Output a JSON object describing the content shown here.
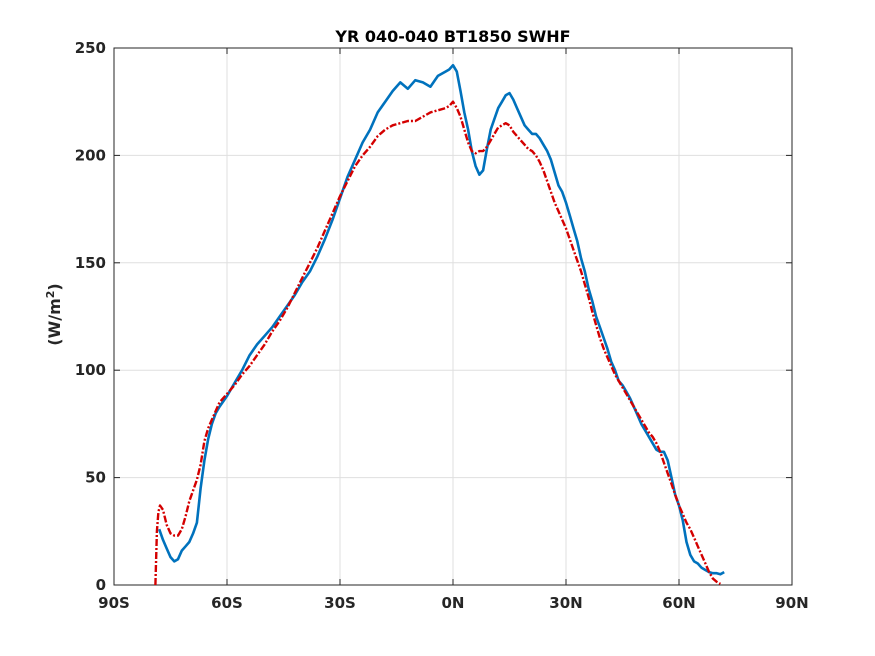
{
  "chart_data": {
    "type": "line",
    "title": "YR 040-040 BT1850    SWHF",
    "ylabel": "(W/m",
    "ylabel_sup": "2",
    "ylabel_close": ")",
    "xlim": [
      -90,
      90
    ],
    "ylim": [
      0,
      250
    ],
    "grid": true,
    "x_ticks": [
      -90,
      -60,
      -30,
      0,
      30,
      60,
      90
    ],
    "x_tick_labels": [
      "90S",
      "60S",
      "30S",
      "0N",
      "30N",
      "60N",
      "90N"
    ],
    "y_ticks": [
      0,
      50,
      100,
      150,
      200,
      250
    ],
    "y_tick_labels": [
      "0",
      "50",
      "100",
      "150",
      "200",
      "250"
    ],
    "series": [
      {
        "color": "#0072BD",
        "style": "solid",
        "points": [
          [
            -78,
            26
          ],
          [
            -77,
            21
          ],
          [
            -76,
            17
          ],
          [
            -75,
            13
          ],
          [
            -74,
            11
          ],
          [
            -73,
            12
          ],
          [
            -72,
            16
          ],
          [
            -71,
            18
          ],
          [
            -70,
            20
          ],
          [
            -69,
            24
          ],
          [
            -68,
            29
          ],
          [
            -67,
            45
          ],
          [
            -66,
            58
          ],
          [
            -65,
            68
          ],
          [
            -64,
            75
          ],
          [
            -63,
            80
          ],
          [
            -62,
            83
          ],
          [
            -60,
            88
          ],
          [
            -58,
            94
          ],
          [
            -56,
            100
          ],
          [
            -54,
            107
          ],
          [
            -52,
            112
          ],
          [
            -50,
            116
          ],
          [
            -48,
            120
          ],
          [
            -46,
            125
          ],
          [
            -44,
            130
          ],
          [
            -42,
            135
          ],
          [
            -40,
            141
          ],
          [
            -38,
            146
          ],
          [
            -36,
            153
          ],
          [
            -34,
            161
          ],
          [
            -32,
            170
          ],
          [
            -30,
            180
          ],
          [
            -28,
            190
          ],
          [
            -26,
            198
          ],
          [
            -24,
            206
          ],
          [
            -22,
            212
          ],
          [
            -20,
            220
          ],
          [
            -18,
            225
          ],
          [
            -16,
            230
          ],
          [
            -14,
            234
          ],
          [
            -12,
            231
          ],
          [
            -10,
            235
          ],
          [
            -8,
            234
          ],
          [
            -6,
            232
          ],
          [
            -4,
            237
          ],
          [
            -2,
            239
          ],
          [
            -1,
            240
          ],
          [
            0,
            242
          ],
          [
            1,
            239
          ],
          [
            2,
            230
          ],
          [
            3,
            220
          ],
          [
            4,
            212
          ],
          [
            5,
            202
          ],
          [
            6,
            195
          ],
          [
            7,
            191
          ],
          [
            8,
            193
          ],
          [
            9,
            203
          ],
          [
            10,
            212
          ],
          [
            11,
            217
          ],
          [
            12,
            222
          ],
          [
            13,
            225
          ],
          [
            14,
            228
          ],
          [
            15,
            229
          ],
          [
            16,
            226
          ],
          [
            17,
            222
          ],
          [
            18,
            218
          ],
          [
            19,
            214
          ],
          [
            20,
            212
          ],
          [
            21,
            210
          ],
          [
            22,
            210
          ],
          [
            23,
            208
          ],
          [
            24,
            205
          ],
          [
            25,
            202
          ],
          [
            26,
            198
          ],
          [
            27,
            192
          ],
          [
            28,
            186
          ],
          [
            29,
            183
          ],
          [
            30,
            178
          ],
          [
            31,
            172
          ],
          [
            32,
            166
          ],
          [
            33,
            160
          ],
          [
            34,
            152
          ],
          [
            35,
            146
          ],
          [
            36,
            138
          ],
          [
            37,
            132
          ],
          [
            38,
            125
          ],
          [
            39,
            120
          ],
          [
            40,
            115
          ],
          [
            41,
            110
          ],
          [
            42,
            104
          ],
          [
            43,
            100
          ],
          [
            44,
            95
          ],
          [
            45,
            93
          ],
          [
            46,
            90
          ],
          [
            47,
            87
          ],
          [
            48,
            83
          ],
          [
            49,
            79
          ],
          [
            50,
            75
          ],
          [
            51,
            72
          ],
          [
            52,
            69
          ],
          [
            53,
            66
          ],
          [
            54,
            63
          ],
          [
            55,
            62
          ],
          [
            56,
            62
          ],
          [
            57,
            58
          ],
          [
            58,
            50
          ],
          [
            59,
            42
          ],
          [
            60,
            37
          ],
          [
            61,
            30
          ],
          [
            62,
            20
          ],
          [
            63,
            14
          ],
          [
            64,
            11
          ],
          [
            65,
            10
          ],
          [
            66,
            8
          ],
          [
            67,
            7
          ],
          [
            68,
            6
          ],
          [
            69,
            5.5
          ],
          [
            70,
            5.5
          ],
          [
            71,
            5
          ],
          [
            72,
            6
          ]
        ]
      },
      {
        "color": "#D40000",
        "style": "dash-dot",
        "points": [
          [
            -79,
            0
          ],
          [
            -78.6,
            25
          ],
          [
            -78.2,
            34
          ],
          [
            -77.8,
            37
          ],
          [
            -77,
            35
          ],
          [
            -76,
            28
          ],
          [
            -75,
            24
          ],
          [
            -74,
            23
          ],
          [
            -73,
            23
          ],
          [
            -72,
            26
          ],
          [
            -71,
            32
          ],
          [
            -70,
            39
          ],
          [
            -69,
            44
          ],
          [
            -68,
            49
          ],
          [
            -67,
            56
          ],
          [
            -66,
            67
          ],
          [
            -65,
            73
          ],
          [
            -64,
            77
          ],
          [
            -63,
            81
          ],
          [
            -62,
            85
          ],
          [
            -60,
            89
          ],
          [
            -58,
            93
          ],
          [
            -56,
            98
          ],
          [
            -54,
            102
          ],
          [
            -52,
            107
          ],
          [
            -50,
            112
          ],
          [
            -48,
            118
          ],
          [
            -46,
            123
          ],
          [
            -44,
            129
          ],
          [
            -42,
            136
          ],
          [
            -40,
            143
          ],
          [
            -38,
            150
          ],
          [
            -36,
            157
          ],
          [
            -34,
            165
          ],
          [
            -32,
            173
          ],
          [
            -30,
            181
          ],
          [
            -28,
            188
          ],
          [
            -26,
            195
          ],
          [
            -24,
            200
          ],
          [
            -22,
            204
          ],
          [
            -20,
            209
          ],
          [
            -18,
            212
          ],
          [
            -16,
            214
          ],
          [
            -14,
            215
          ],
          [
            -12,
            216
          ],
          [
            -10,
            216
          ],
          [
            -8,
            218
          ],
          [
            -6,
            220
          ],
          [
            -4,
            221
          ],
          [
            -2,
            222
          ],
          [
            -1,
            223
          ],
          [
            0,
            225
          ],
          [
            1,
            222
          ],
          [
            2,
            218
          ],
          [
            3,
            212
          ],
          [
            4,
            206
          ],
          [
            5,
            202
          ],
          [
            6,
            201
          ],
          [
            7,
            202
          ],
          [
            8,
            202
          ],
          [
            9,
            204
          ],
          [
            10,
            207
          ],
          [
            11,
            210
          ],
          [
            12,
            213
          ],
          [
            13,
            214
          ],
          [
            14,
            215
          ],
          [
            15,
            214
          ],
          [
            16,
            211
          ],
          [
            17,
            209
          ],
          [
            18,
            207
          ],
          [
            19,
            205
          ],
          [
            20,
            203
          ],
          [
            21,
            202
          ],
          [
            22,
            200
          ],
          [
            23,
            197
          ],
          [
            24,
            193
          ],
          [
            25,
            188
          ],
          [
            26,
            183
          ],
          [
            27,
            178
          ],
          [
            28,
            174
          ],
          [
            29,
            170
          ],
          [
            30,
            166
          ],
          [
            31,
            161
          ],
          [
            32,
            156
          ],
          [
            33,
            151
          ],
          [
            34,
            146
          ],
          [
            35,
            140
          ],
          [
            36,
            134
          ],
          [
            37,
            127
          ],
          [
            38,
            121
          ],
          [
            39,
            115
          ],
          [
            40,
            110
          ],
          [
            41,
            106
          ],
          [
            42,
            102
          ],
          [
            43,
            98
          ],
          [
            44,
            95
          ],
          [
            45,
            92
          ],
          [
            46,
            89
          ],
          [
            47,
            86
          ],
          [
            48,
            83
          ],
          [
            49,
            80
          ],
          [
            50,
            77
          ],
          [
            51,
            74
          ],
          [
            52,
            71
          ],
          [
            53,
            69
          ],
          [
            54,
            66
          ],
          [
            55,
            62
          ],
          [
            56,
            57
          ],
          [
            57,
            52
          ],
          [
            58,
            47
          ],
          [
            59,
            42
          ],
          [
            60,
            37
          ],
          [
            61,
            33
          ],
          [
            62,
            29
          ],
          [
            63,
            26
          ],
          [
            64,
            22
          ],
          [
            65,
            18
          ],
          [
            66,
            14
          ],
          [
            67,
            10
          ],
          [
            68,
            6
          ],
          [
            69,
            3
          ],
          [
            70,
            1.5
          ],
          [
            71,
            0.5
          ]
        ]
      }
    ]
  }
}
